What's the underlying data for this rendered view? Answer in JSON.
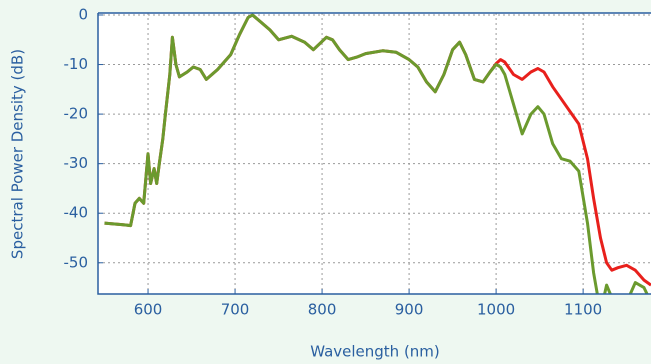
{
  "chart_data": {
    "type": "line",
    "xlabel": "Wavelength (nm)",
    "ylabel": "Spectral Power Density (dB)",
    "x": [
      550,
      570,
      580,
      585,
      590,
      595,
      600,
      603,
      607,
      610,
      613,
      617,
      620,
      625,
      628,
      632,
      636,
      645,
      652,
      660,
      667,
      680,
      695,
      705,
      715,
      720,
      730,
      740,
      750,
      765,
      780,
      790,
      805,
      812,
      820,
      830,
      840,
      850,
      870,
      885,
      900,
      910,
      920,
      930,
      940,
      950,
      958,
      965,
      975,
      985,
      993,
      1000,
      1005,
      1010,
      1020,
      1030,
      1040,
      1048,
      1055,
      1065,
      1075,
      1085,
      1095,
      1105,
      1112,
      1120,
      1127,
      1133,
      1140,
      1150,
      1160,
      1170,
      1178
    ],
    "series": [
      {
        "color": "#e8201c",
        "values": [
          -42,
          -42.3,
          -42.5,
          -38,
          -37,
          -38,
          -28,
          -34,
          -31,
          -34,
          -30,
          -25,
          -20,
          -12,
          -4.5,
          -10,
          -12.5,
          -11.5,
          -10.5,
          -11,
          -13,
          -11,
          -8,
          -4,
          -0.5,
          0,
          -1.5,
          -3,
          -5,
          -4.3,
          -5.5,
          -7,
          -4.5,
          -5,
          -7,
          -9,
          -8.5,
          -7.8,
          -7.2,
          -7.5,
          -9,
          -10.5,
          -13.5,
          -15.5,
          -12,
          -7,
          -5.5,
          -8,
          -13,
          -13.5,
          -11.5,
          -9.8,
          -9,
          -9.5,
          -12,
          -13,
          -11.5,
          -10.8,
          -11.5,
          -14.5,
          -17,
          -19.5,
          -22,
          -29,
          -37,
          -45,
          -50,
          -51.5,
          -51,
          -50.5,
          -51.5,
          -53.5,
          -54.5
        ]
      },
      {
        "color": "#6b9a2e",
        "values": [
          -42,
          -42.3,
          -42.5,
          -38,
          -37,
          -38,
          -28,
          -34,
          -31,
          -34,
          -30,
          -25,
          -20,
          -12,
          -4.5,
          -10,
          -12.5,
          -11.5,
          -10.5,
          -11,
          -13,
          -11,
          -8,
          -4,
          -0.5,
          0,
          -1.5,
          -3,
          -5,
          -4.3,
          -5.5,
          -7,
          -4.5,
          -5,
          -7,
          -9,
          -8.5,
          -7.8,
          -7.2,
          -7.5,
          -9,
          -10.5,
          -13.5,
          -15.5,
          -12,
          -7,
          -5.5,
          -8,
          -13,
          -13.5,
          -11.5,
          -10,
          -10.5,
          -12,
          -18,
          -24,
          -20,
          -18.5,
          -20,
          -26,
          -29,
          -29.5,
          -31.5,
          -42,
          -52,
          -60,
          -54.5,
          -57,
          -60,
          -58,
          -54,
          -55,
          -58
        ]
      }
    ],
    "xlim": [
      542.5,
      1178
    ],
    "ylim": [
      -56.3,
      0.4
    ],
    "xticks": [
      600,
      700,
      800,
      900,
      1000,
      1100
    ],
    "yticks": [
      0,
      -10,
      -20,
      -30,
      -40,
      -50
    ],
    "grid": true
  }
}
